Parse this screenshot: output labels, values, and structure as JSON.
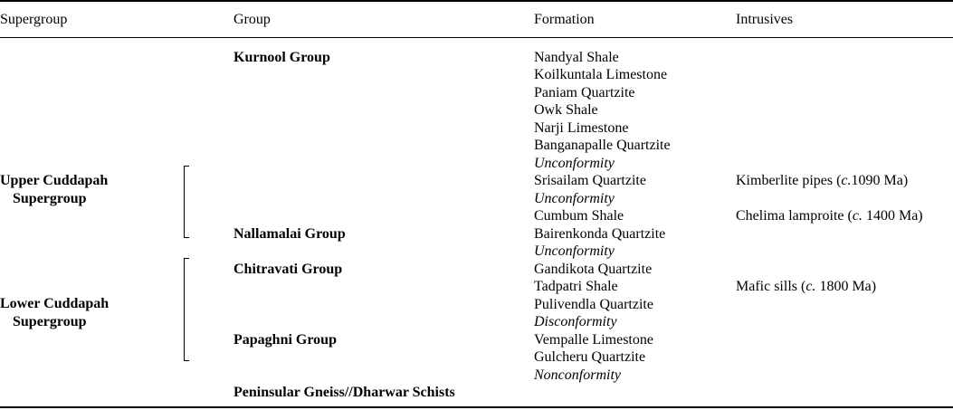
{
  "headers": [
    "Supergroup",
    "Group",
    "Formation",
    "Intrusives"
  ],
  "supergroups": [
    {
      "line1": "Upper Cuddapah",
      "line2": "Supergroup"
    },
    {
      "line1": "Lower Cuddapah",
      "line2": "Supergroup"
    }
  ],
  "groups": [
    "Kurnool Group",
    "Nallamalai Group",
    "Chitravati Group",
    "Papaghni Group",
    "Peninsular Gneiss//Dharwar Schists"
  ],
  "formations": [
    "Nandyal Shale",
    "Koilkuntala Limestone",
    "Paniam Quartzite",
    "Owk Shale",
    "Narji Limestone",
    "Banganapalle Quartzite",
    "Unconformity",
    "Srisailam Quartzite",
    "Unconformity",
    "Cumbum Shale",
    "Bairenkonda Quartzite",
    "Unconformity",
    "Gandikota Quartzite",
    "Tadpatri Shale",
    "Pulivendla Quartzite",
    "Disconformity",
    "Vempalle Limestone",
    "Gulcheru Quartzite",
    "Nonconformity"
  ],
  "intrusives": [
    {
      "name": "Kimberlite pipes (",
      "c": "c.",
      "age": "1090 Ma)"
    },
    {
      "name": "Chelima lamproite (",
      "c": "c.",
      "age": " 1400 Ma)"
    },
    {
      "name": "Mafic sills (",
      "c": "c.",
      "age": " 1800 Ma)"
    }
  ]
}
